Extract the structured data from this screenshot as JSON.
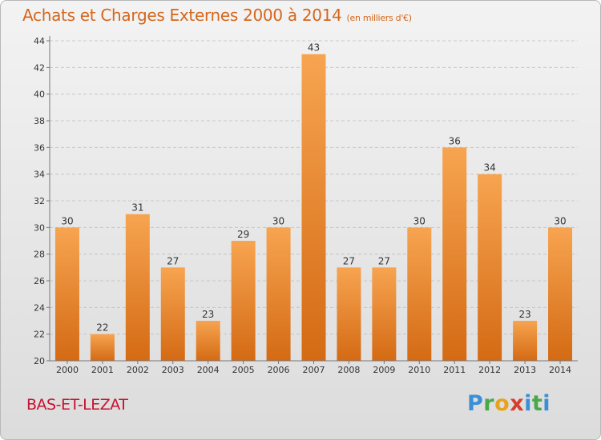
{
  "title": "Achats et Charges Externes 2000 à 2014",
  "unit": "(en milliers d'€)",
  "place": "BAS-ET-LEZAT",
  "logo": "Proxiti",
  "colors": {
    "bar": "#f08a2e",
    "title": "#d4661c",
    "place": "#c8102e"
  },
  "chart_data": {
    "type": "bar",
    "title": "Achats et Charges Externes 2000 à 2014",
    "subtitle": "(en milliers d'€)",
    "categories": [
      "2000",
      "2001",
      "2002",
      "2003",
      "2004",
      "2005",
      "2006",
      "2007",
      "2008",
      "2009",
      "2010",
      "2011",
      "2012",
      "2013",
      "2014"
    ],
    "values": [
      30,
      22,
      31,
      27,
      23,
      29,
      30,
      43,
      27,
      27,
      30,
      36,
      34,
      23,
      30
    ],
    "ylim": [
      20,
      44
    ],
    "yticks": [
      20,
      22,
      24,
      26,
      28,
      30,
      32,
      34,
      36,
      38,
      40,
      42,
      44
    ],
    "grid": true
  }
}
